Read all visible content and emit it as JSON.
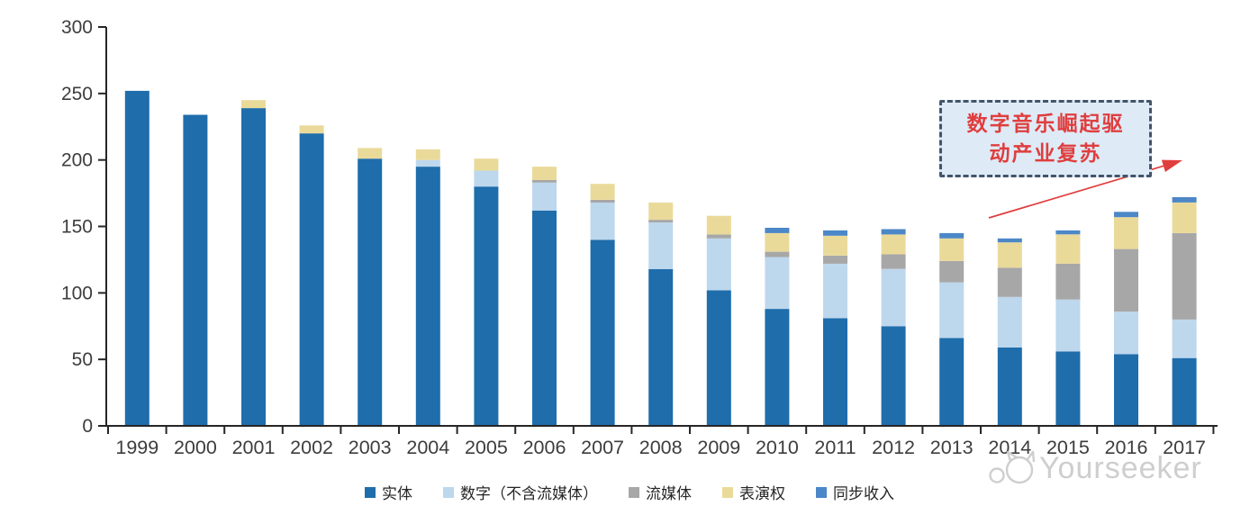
{
  "chart_data": {
    "type": "bar",
    "stacked": true,
    "categories": [
      "1999",
      "2000",
      "2001",
      "2002",
      "2003",
      "2004",
      "2005",
      "2006",
      "2007",
      "2008",
      "2009",
      "2010",
      "2011",
      "2012",
      "2013",
      "2014",
      "2015",
      "2016",
      "2017"
    ],
    "series": [
      {
        "name": "实体",
        "color": "#1F6DAB",
        "values": [
          252,
          234,
          239,
          220,
          201,
          195,
          180,
          162,
          140,
          118,
          102,
          88,
          81,
          75,
          66,
          59,
          56,
          54,
          51
        ]
      },
      {
        "name": "数字（不含流媒体）",
        "color": "#BDD7ED",
        "values": [
          0,
          0,
          0,
          0,
          0,
          5,
          12,
          21,
          28,
          35,
          39,
          39,
          41,
          43,
          42,
          38,
          39,
          32,
          29
        ]
      },
      {
        "name": "流媒体",
        "color": "#A7A7A7",
        "values": [
          0,
          0,
          0,
          0,
          0,
          0,
          0,
          2,
          2,
          2,
          3,
          4,
          6,
          11,
          16,
          22,
          27,
          47,
          65
        ]
      },
      {
        "name": "表演权",
        "color": "#EADA9A",
        "values": [
          0,
          0,
          6,
          6,
          8,
          8,
          9,
          10,
          12,
          13,
          14,
          14,
          15,
          15,
          17,
          19,
          22,
          24,
          23
        ]
      },
      {
        "name": "同步收入",
        "color": "#4C87C7",
        "values": [
          0,
          0,
          0,
          0,
          0,
          0,
          0,
          0,
          0,
          0,
          0,
          4,
          4,
          4,
          4,
          3,
          3,
          4,
          4
        ]
      }
    ],
    "ylim": [
      0,
      300
    ],
    "y_ticks": [
      0,
      50,
      100,
      150,
      200,
      250,
      300
    ],
    "grid": false,
    "legend_position": "bottom",
    "axis_color": "#262626",
    "tick_label_color": "#3D3D3D"
  },
  "annotation": {
    "line1": "数字音乐崛起驱",
    "line2": "动产业复苏",
    "box_fill": "#DEEBF7",
    "border_color": "#44546A",
    "text_color": "#E03E3E",
    "arrow_color": "#E03E3E"
  },
  "watermark": {
    "text": "Yourseeker",
    "logo": "cat-logo",
    "color": "#C9C9C9"
  }
}
